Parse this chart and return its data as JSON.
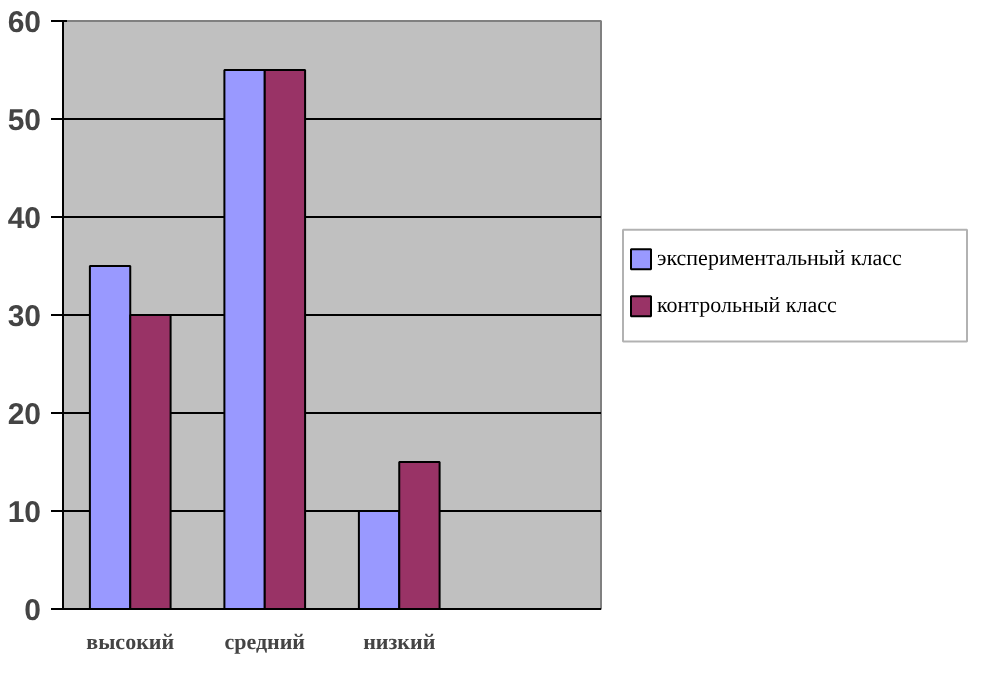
{
  "chart_data": {
    "type": "bar",
    "categories": [
      "высокий",
      "средний",
      "низкий",
      null
    ],
    "series": [
      {
        "name": "экспериментальный класс",
        "color": "#9999ff",
        "values": [
          35,
          55,
          10,
          null
        ]
      },
      {
        "name": "контрольный класс",
        "color": "#993366",
        "values": [
          30,
          55,
          15,
          null
        ]
      }
    ],
    "ylim": [
      0,
      60
    ],
    "yticks": [
      0,
      10,
      20,
      30,
      40,
      50,
      60
    ],
    "grid": "y",
    "legend": "right"
  }
}
